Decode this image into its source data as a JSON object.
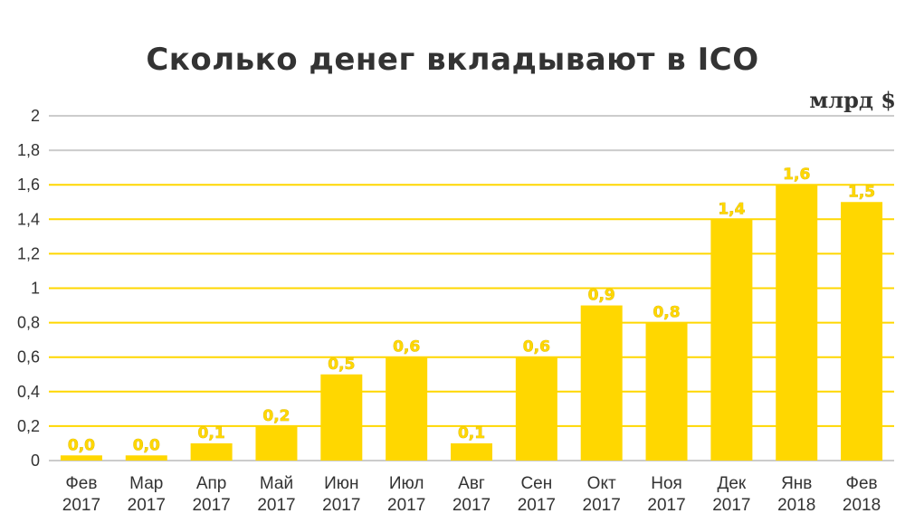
{
  "chart_data": {
    "type": "bar",
    "title": "Сколько денег вкладывают в ICO",
    "ylabel": "млрд $",
    "xlabel": "",
    "categories": [
      [
        "Фев",
        "2017"
      ],
      [
        "Мар",
        "2017"
      ],
      [
        "Апр",
        "2017"
      ],
      [
        "Май",
        "2017"
      ],
      [
        "Июн",
        "2017"
      ],
      [
        "Июл",
        "2017"
      ],
      [
        "Авг",
        "2017"
      ],
      [
        "Сен",
        "2017"
      ],
      [
        "Окт",
        "2017"
      ],
      [
        "Ноя",
        "2017"
      ],
      [
        "Дек",
        "2017"
      ],
      [
        "Янв",
        "2018"
      ],
      [
        "Фев",
        "2018"
      ]
    ],
    "values": [
      0.03,
      0.03,
      0.1,
      0.2,
      0.5,
      0.6,
      0.1,
      0.6,
      0.9,
      0.8,
      1.4,
      1.6,
      1.5
    ],
    "data_labels": [
      "0,0",
      "0,0",
      "0,1",
      "0,2",
      "0,5",
      "0,6",
      "0,1",
      "0,6",
      "0,9",
      "0,8",
      "1,4",
      "1,6",
      "1,5"
    ],
    "ylim": [
      0,
      2
    ],
    "yticks": [
      "0",
      "0,2",
      "0,4",
      "0,6",
      "0,8",
      "1",
      "1,2",
      "1,4",
      "1,6",
      "1,8",
      "2"
    ],
    "ytick_values": [
      0,
      0.2,
      0.4,
      0.6,
      0.8,
      1,
      1.2,
      1.4,
      1.6,
      1.8,
      2
    ],
    "grid": true,
    "legend": "none",
    "colors": {
      "bar": "#FFD700",
      "grid_highlight": "#FFD700",
      "grid": "#CCCCCC",
      "text": "#333333"
    }
  }
}
